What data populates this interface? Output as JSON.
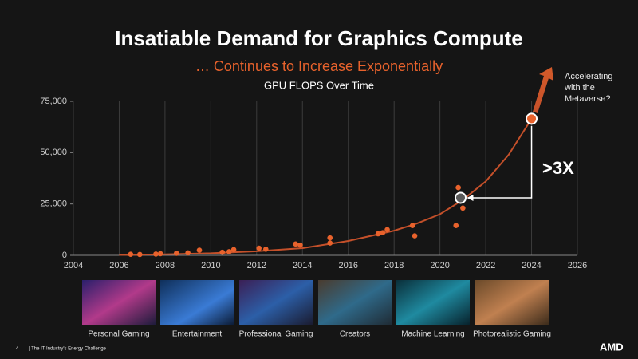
{
  "slide": {
    "title": "Insatiable Demand for Graphics Compute",
    "subtitle": "… Continues to Increase Exponentially",
    "page_number": "4",
    "footer": "| The IT Industry's Energy Challenge",
    "logo": "AMD",
    "tiles": [
      "Personal Gaming",
      "Entertainment",
      "Professional Gaming",
      "Creators",
      "Machine  Learning",
      "Photorealistic Gaming"
    ]
  },
  "chart_data": {
    "type": "scatter",
    "title": "GPU FLOPS Over Time",
    "x": [
      2006.5,
      2006.9,
      2007.6,
      2007.8,
      2008.5,
      2009.0,
      2009.5,
      2010.5,
      2010.8,
      2011.0,
      2012.1,
      2012.4,
      2013.7,
      2013.9,
      2015.2,
      2015.2,
      2017.3,
      2017.5,
      2017.7,
      2018.8,
      2018.9,
      2020.7,
      2020.8,
      2021.0
    ],
    "values": [
      500,
      400,
      600,
      800,
      1000,
      1200,
      2500,
      1500,
      1800,
      2800,
      3500,
      3000,
      5500,
      5000,
      6000,
      8500,
      10500,
      11000,
      12500,
      14500,
      9500,
      14500,
      33000,
      23000
    ],
    "color": "#e8622c",
    "trend": {
      "x": [
        2006,
        2008,
        2010,
        2012,
        2014,
        2016,
        2018,
        2019,
        2020,
        2021,
        2022,
        2023,
        2024
      ],
      "values": [
        200,
        500,
        1000,
        2000,
        3500,
        7000,
        12000,
        15500,
        20000,
        27000,
        36000,
        49000,
        66500
      ],
      "color": "#c4502a"
    },
    "highlights": {
      "x": [
        2020.9,
        2024
      ],
      "values": [
        28000,
        66500
      ],
      "colors": [
        "#5a5a5a",
        "#e8622c"
      ]
    },
    "annotations": [
      "Accelerating",
      "with the",
      "Metaverse?",
      ">3X"
    ],
    "xlim": [
      2004,
      2026
    ],
    "xticks": [
      2004,
      2006,
      2008,
      2010,
      2012,
      2014,
      2016,
      2018,
      2020,
      2022,
      2024,
      2026
    ],
    "ylim": [
      0,
      75000
    ],
    "yticks": [
      0,
      {
        "value": 25000,
        "label": "25,000"
      },
      {
        "value": 50000,
        "label": "50,000"
      },
      {
        "value": 75000,
        "label": "75,000"
      }
    ],
    "grid": true
  }
}
